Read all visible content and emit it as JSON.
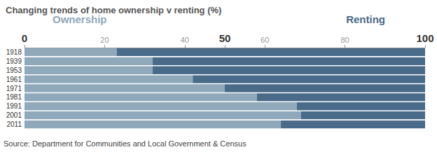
{
  "chart_data": {
    "type": "bar",
    "title": "Changing trends of home ownership v renting (%)",
    "orientation": "horizontal",
    "stacked": true,
    "categories": [
      "1918",
      "1939",
      "1953",
      "1961",
      "1971",
      "1981",
      "1991",
      "2001",
      "2011"
    ],
    "series": [
      {
        "name": "Ownership",
        "color": "#8fa8ba",
        "values": [
          23,
          32,
          32,
          42,
          50,
          58,
          68,
          69,
          64
        ]
      },
      {
        "name": "Renting",
        "color": "#4a6a89",
        "values": [
          77,
          68,
          68,
          58,
          50,
          42,
          32,
          31,
          36
        ]
      }
    ],
    "xlim": [
      0,
      100
    ],
    "xticks": [
      0,
      20,
      40,
      50,
      60,
      80,
      100
    ],
    "grid": false,
    "legend": "top",
    "source": "Source: Department for Communities and Local Government & Census"
  }
}
